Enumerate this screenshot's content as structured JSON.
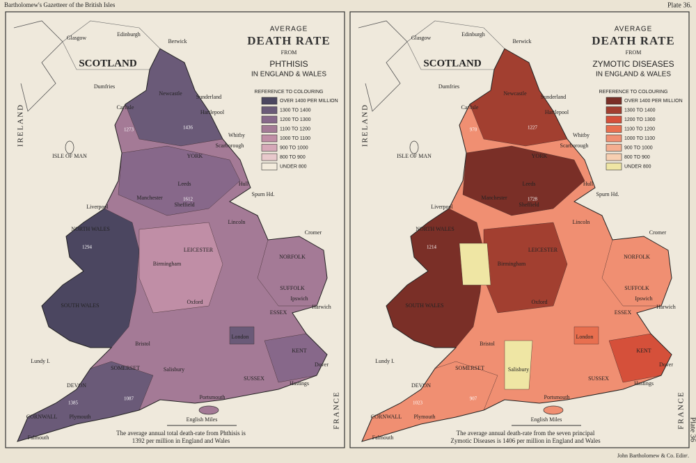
{
  "header": {
    "left": "Bartholomew's Gazetteer of the British Isles",
    "right": "Plate 36."
  },
  "footer": "John Bartholomew & Co. Edinʳ.",
  "side_label": "Plate 36",
  "maps": [
    {
      "title_top": "AVERAGE",
      "title_main": "DEATH RATE",
      "title_from": "FROM",
      "subject": "PHTHISIS",
      "region": "IN ENGLAND & WALES",
      "legend_title": "REFERENCE TO COLOURING",
      "legend": [
        {
          "label": "OVER 1400 PER MILLION",
          "color": "#4b4660"
        },
        {
          "label": "1300 TO 1400",
          "color": "#6a5a78"
        },
        {
          "label": "1200 TO 1300",
          "color": "#87688a"
        },
        {
          "label": "1100 TO 1200",
          "color": "#a47a96"
        },
        {
          "label": "1000 TO 1100",
          "color": "#c08ea6"
        },
        {
          "label": "900 TO 1000",
          "color": "#d6a8b8"
        },
        {
          "label": "800 TO 900",
          "color": "#e8c9cc"
        },
        {
          "label": "UNDER 800",
          "color": "#f3ebdc"
        }
      ],
      "scale": "English Miles",
      "caption": [
        "The average annual total death-rate from Phthisis is",
        "1392 per million in England and Wales"
      ],
      "figures": [
        "1436",
        "1273",
        "1612",
        "1385",
        "1087",
        "1294"
      ]
    },
    {
      "title_top": "AVERAGE",
      "title_main": "DEATH RATE",
      "title_from": "FROM",
      "subject": "ZYMOTIC DISEASES",
      "region": "IN ENGLAND & WALES",
      "legend_title": "REFERENCE TO COLOURING",
      "legend": [
        {
          "label": "OVER 1400 PER MILLION",
          "color": "#7a2f27"
        },
        {
          "label": "1300 TO 1400",
          "color": "#a23f30"
        },
        {
          "label": "1200 TO 1300",
          "color": "#d5503a"
        },
        {
          "label": "1100 TO 1200",
          "color": "#e86f4f"
        },
        {
          "label": "1000 TO 1100",
          "color": "#f08f72"
        },
        {
          "label": "900 TO 1000",
          "color": "#f4ae90"
        },
        {
          "label": "800 TO 900",
          "color": "#f7cfb1"
        },
        {
          "label": "UNDER 800",
          "color": "#efe6a4"
        }
      ],
      "scale": "English Miles",
      "caption": [
        "The average annual death-rate from the seven principal",
        "Zymotic Diseases is 1406 per million in England and Wales"
      ],
      "figures": [
        "1227",
        "970",
        "1728",
        "1023",
        "907",
        "1214"
      ]
    }
  ],
  "places": [
    "Glasgow",
    "Edinburgh",
    "Berwick",
    "SCOTLAND",
    "Dumfries",
    "Newcastle",
    "Sunderland",
    "Carlisle",
    "Hartlepool",
    "Whitby",
    "Scarborough",
    "YORK",
    "Leeds",
    "Hull",
    "Liverpool",
    "Manchester",
    "Sheffield",
    "Lincoln",
    "Cromer",
    "NORTH WALES",
    "NORFOLK",
    "Birmingham",
    "LEICESTER",
    "SUFFOLK",
    "Ipswich",
    "Harwich",
    "SOUTH WALES",
    "Oxford",
    "ESSEX",
    "London",
    "Bristol",
    "Dover",
    "SOMERSET",
    "Salisbury",
    "KENT",
    "SUSSEX",
    "DEVON",
    "Hastings",
    "Portsmouth",
    "Plymouth",
    "CORNWALL",
    "Falmouth",
    "Lundy I.",
    "ISLE OF MAN",
    "Spurn Hd.",
    "IRELAND",
    "FRANCE"
  ]
}
